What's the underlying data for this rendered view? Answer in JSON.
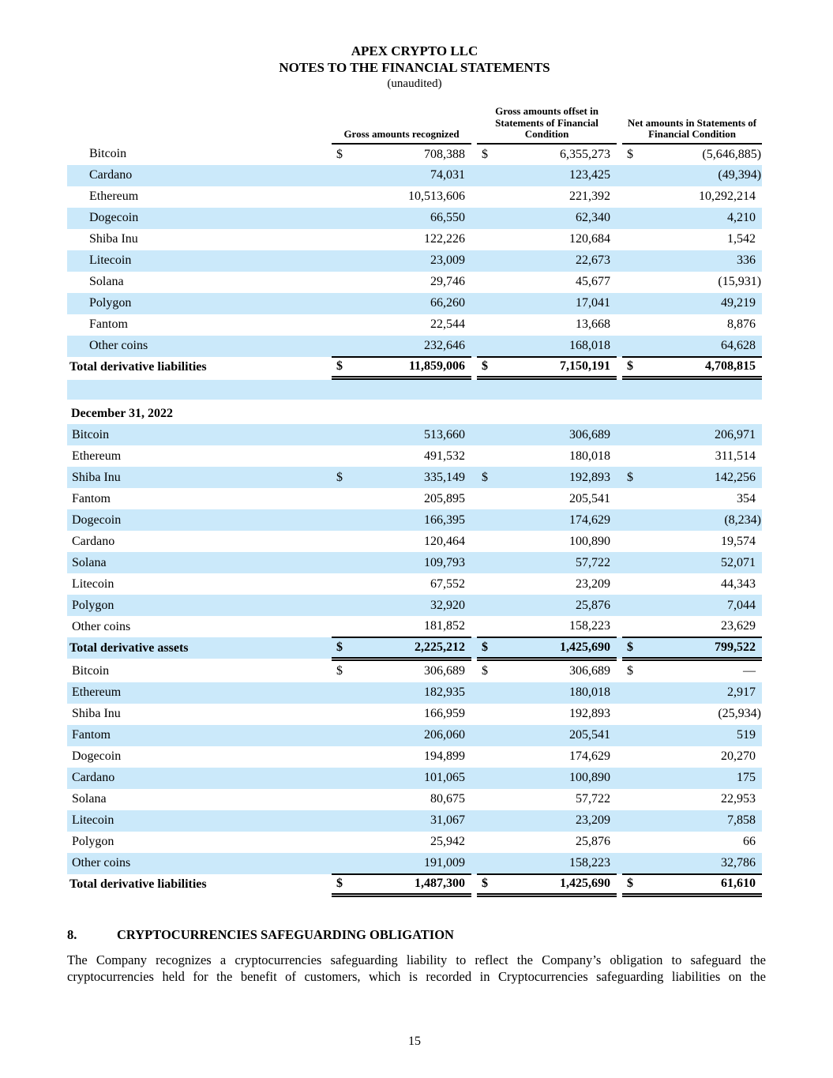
{
  "header": {
    "title": "APEX CRYPTO LLC",
    "subtitle": "NOTES TO THE FINANCIAL STATEMENTS",
    "unaudited": "(unaudited)"
  },
  "colors": {
    "row_highlight": "#cbe9fa"
  },
  "col_headers": [
    "Gross amounts recognized",
    "Gross amounts offset in Statements of Financial Condition",
    "Net amounts in Statements of Financial Condition"
  ],
  "section_date": "December 31, 2022",
  "tables": [
    {
      "name": "derivative-liabilities-table",
      "indent_labels": true,
      "has_header": true,
      "rows": [
        [
          "Bitcoin",
          "$",
          "708,388",
          "$",
          "6,355,273",
          "$",
          "(5,646,885)"
        ],
        [
          "Cardano",
          "",
          "74,031",
          "",
          "123,425",
          "",
          "(49,394)"
        ],
        [
          "Ethereum",
          "",
          "10,513,606",
          "",
          "221,392",
          "",
          "10,292,214"
        ],
        [
          "Dogecoin",
          "",
          "66,550",
          "",
          "62,340",
          "",
          "4,210"
        ],
        [
          "Shiba Inu",
          "",
          "122,226",
          "",
          "120,684",
          "",
          "1,542"
        ],
        [
          "Litecoin",
          "",
          "23,009",
          "",
          "22,673",
          "",
          "336"
        ],
        [
          "Solana",
          "",
          "29,746",
          "",
          "45,677",
          "",
          "(15,931)"
        ],
        [
          "Polygon",
          "",
          "66,260",
          "",
          "17,041",
          "",
          "49,219"
        ],
        [
          "Fantom",
          "",
          "22,544",
          "",
          "13,668",
          "",
          "8,876"
        ],
        [
          "Other coins",
          "",
          "232,646",
          "",
          "168,018",
          "",
          "64,628"
        ]
      ],
      "total": [
        "Total derivative liabilities",
        "$",
        "11,859,006",
        "$",
        "7,150,191",
        "$",
        "4,708,815"
      ]
    },
    {
      "name": "derivative-assets-table-dec-2022",
      "indent_labels": false,
      "has_header": false,
      "rows": [
        [
          "Bitcoin",
          "",
          "513,660",
          "",
          "306,689",
          "",
          "206,971"
        ],
        [
          "Ethereum",
          "",
          "491,532",
          "",
          "180,018",
          "",
          "311,514"
        ],
        [
          "Shiba Inu",
          "$",
          "335,149",
          "$",
          "192,893",
          "$",
          "142,256"
        ],
        [
          "Fantom",
          "",
          "205,895",
          "",
          "205,541",
          "",
          "354"
        ],
        [
          "Dogecoin",
          "",
          "166,395",
          "",
          "174,629",
          "",
          "(8,234)"
        ],
        [
          "Cardano",
          "",
          "120,464",
          "",
          "100,890",
          "",
          "19,574"
        ],
        [
          "Solana",
          "",
          "109,793",
          "",
          "57,722",
          "",
          "52,071"
        ],
        [
          "Litecoin",
          "",
          "67,552",
          "",
          "23,209",
          "",
          "44,343"
        ],
        [
          "Polygon",
          "",
          "32,920",
          "",
          "25,876",
          "",
          "7,044"
        ],
        [
          "Other coins",
          "",
          "181,852",
          "",
          "158,223",
          "",
          "23,629"
        ]
      ],
      "total": [
        "Total derivative assets",
        "$",
        "2,225,212",
        "$",
        "1,425,690",
        "$",
        "799,522"
      ]
    },
    {
      "name": "derivative-liabilities-table-dec-2022",
      "indent_labels": false,
      "has_header": false,
      "rows": [
        [
          "Bitcoin",
          "$",
          "306,689",
          "$",
          "306,689",
          "$",
          "—"
        ],
        [
          "Ethereum",
          "",
          "182,935",
          "",
          "180,018",
          "",
          "2,917"
        ],
        [
          "Shiba Inu",
          "",
          "166,959",
          "",
          "192,893",
          "",
          "(25,934)"
        ],
        [
          "Fantom",
          "",
          "206,060",
          "",
          "205,541",
          "",
          "519"
        ],
        [
          "Dogecoin",
          "",
          "194,899",
          "",
          "174,629",
          "",
          "20,270"
        ],
        [
          "Cardano",
          "",
          "101,065",
          "",
          "100,890",
          "",
          "175"
        ],
        [
          "Solana",
          "",
          "80,675",
          "",
          "57,722",
          "",
          "22,953"
        ],
        [
          "Litecoin",
          "",
          "31,067",
          "",
          "23,209",
          "",
          "7,858"
        ],
        [
          "Polygon",
          "",
          "25,942",
          "",
          "25,876",
          "",
          "66"
        ],
        [
          "Other coins",
          "",
          "191,009",
          "",
          "158,223",
          "",
          "32,786"
        ]
      ],
      "total": [
        "Total derivative liabilities",
        "$",
        "1,487,300",
        "$",
        "1,425,690",
        "$",
        "61,610"
      ]
    }
  ],
  "section8": {
    "number": "8.",
    "heading": "CRYPTOCURRENCIES SAFEGUARDING OBLIGATION",
    "paragraph": "The Company recognizes a cryptocurrencies safeguarding liability to reflect the Company’s obligation to safeguard the cryptocurrencies held for the benefit of customers, which is recorded in Cryptocurrencies safeguarding liabilities on the"
  },
  "page_number": "15"
}
